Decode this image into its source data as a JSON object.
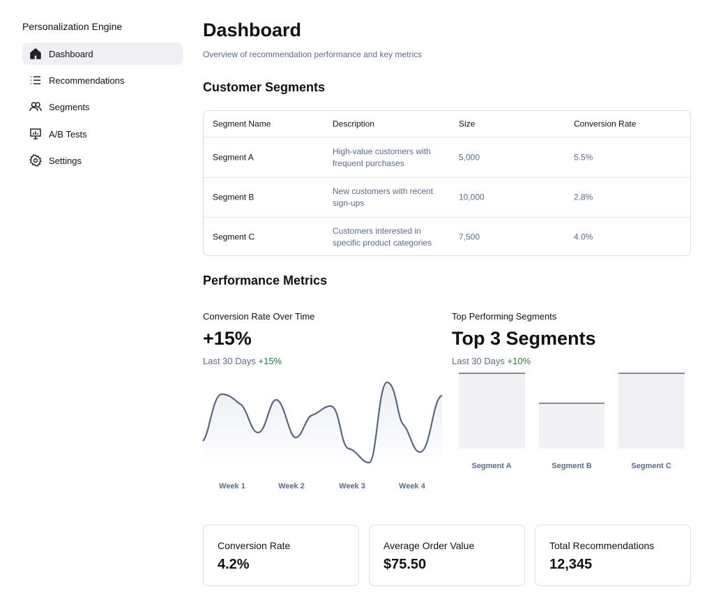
{
  "sidebar": {
    "title": "Personalization Engine",
    "nav": [
      "Dashboard",
      "Recommendations",
      "Segments",
      "A/B Tests",
      "Settings"
    ]
  },
  "header": {
    "title": "Dashboard",
    "subtitle": "Overview of recommendation performance and key metrics"
  },
  "segments": {
    "title": "Customer Segments",
    "table": {
      "columns": [
        "Segment Name",
        "Description",
        "Size",
        "Conversion Rate"
      ],
      "rows": [
        [
          "Segment A",
          "High-value customers with frequent purchases",
          "5,000",
          "5.5%"
        ],
        [
          "Segment B",
          "New customers with recent sign-ups",
          "10,000",
          "2.8%"
        ],
        [
          "Segment C",
          "Customers interested in specific product categories",
          "7,500",
          "4.0%"
        ]
      ]
    }
  },
  "performance": {
    "title": "Performance Metrics",
    "conversion": {
      "title": "Conversion Rate Over Time",
      "value": "+15%",
      "period": "Last 30 Days",
      "change": "+15%",
      "x_labels": [
        "Week 1",
        "Week 2",
        "Week 3",
        "Week 4"
      ]
    },
    "top": {
      "title": "Top Performing Segments",
      "value": "Top 3 Segments",
      "period": "Last 30 Days",
      "change": "+10%",
      "labels": [
        "Segment A",
        "Segment B",
        "Segment C"
      ]
    }
  },
  "kpis": [
    {
      "label": "Conversion Rate",
      "value": "4.2%"
    },
    {
      "label": "Average Order Value",
      "value": "$75.50"
    },
    {
      "label": "Total Recommendations",
      "value": "12,345"
    }
  ]
}
